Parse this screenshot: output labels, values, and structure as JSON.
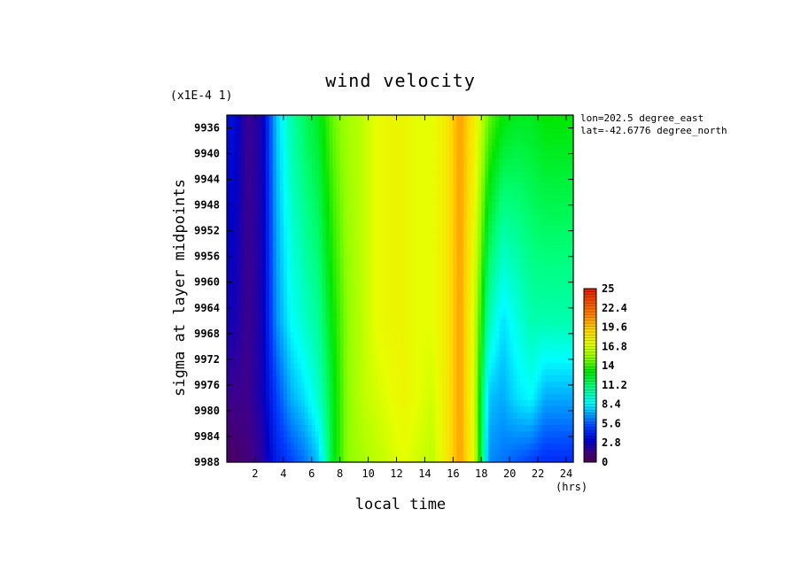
{
  "chart_data": {
    "type": "heatmap",
    "title": "wind velocity",
    "scale_note": "(x1E-4 1)",
    "xlabel": "local time",
    "xunit": "(hrs)",
    "ylabel": "sigma at layer midpoints",
    "annotations": [
      "lon=202.5 degree_east",
      "lat=-42.6776 degree_north"
    ],
    "x": [
      0.5,
      1.5,
      2.5,
      3.5,
      4.5,
      5.5,
      6.5,
      7.5,
      8.5,
      9.5,
      10.5,
      11.5,
      12.5,
      13.5,
      14.5,
      15.5,
      16.5,
      17.5,
      18.5,
      19.5,
      20.5,
      21.5,
      22.5,
      23.5,
      24.5
    ],
    "xlim": [
      0,
      24.5
    ],
    "xticks": [
      2,
      4,
      6,
      8,
      10,
      12,
      14,
      16,
      18,
      20,
      22,
      24
    ],
    "y": [
      9934,
      9966,
      9978,
      9988
    ],
    "ylim": [
      9934,
      9988
    ],
    "yticks": [
      9936,
      9940,
      9944,
      9948,
      9952,
      9956,
      9960,
      9964,
      9968,
      9972,
      9976,
      9980,
      9984,
      9988
    ],
    "ytick_labels": [
      "9936",
      "9940",
      "9944",
      "9948",
      "9952",
      "9956",
      "9960",
      "9964",
      "9968",
      "9972",
      "9976",
      "9980",
      "9984",
      "9988"
    ],
    "z": [
      [
        3.5,
        1.5,
        2.5,
        7.5,
        10.0,
        11.5,
        12.5,
        14.5,
        15.5,
        16.0,
        17.0,
        17.5,
        17.5,
        17.0,
        17.0,
        18.0,
        20.5,
        18.0,
        14.5,
        13.0,
        12.5,
        12.5,
        13.0,
        13.0,
        13.0
      ],
      [
        2.5,
        1.5,
        2.5,
        6.5,
        8.5,
        9.5,
        10.5,
        13.0,
        15.0,
        16.0,
        17.0,
        17.5,
        17.5,
        17.0,
        17.0,
        18.0,
        20.5,
        16.5,
        10.0,
        8.0,
        9.0,
        10.0,
        10.0,
        10.0,
        10.0
      ],
      [
        1.5,
        1.5,
        2.5,
        5.0,
        7.0,
        8.0,
        9.5,
        12.5,
        15.0,
        16.0,
        16.5,
        17.0,
        17.5,
        17.0,
        16.5,
        18.0,
        20.5,
        16.5,
        7.5,
        7.0,
        8.0,
        8.5,
        7.0,
        7.0,
        7.0
      ],
      [
        0.5,
        1.0,
        2.0,
        4.0,
        5.0,
        6.0,
        7.5,
        12.5,
        15.0,
        15.5,
        16.0,
        16.5,
        17.0,
        16.5,
        16.0,
        18.0,
        20.5,
        17.0,
        6.5,
        6.0,
        5.5,
        5.0,
        4.5,
        4.5,
        4.5
      ]
    ],
    "colorbar": {
      "min": 0,
      "max": 25,
      "labels": [
        "25",
        "22.4",
        "19.6",
        "16.8",
        "14",
        "11.2",
        "8.4",
        "5.6",
        "2.8",
        "0"
      ]
    }
  }
}
